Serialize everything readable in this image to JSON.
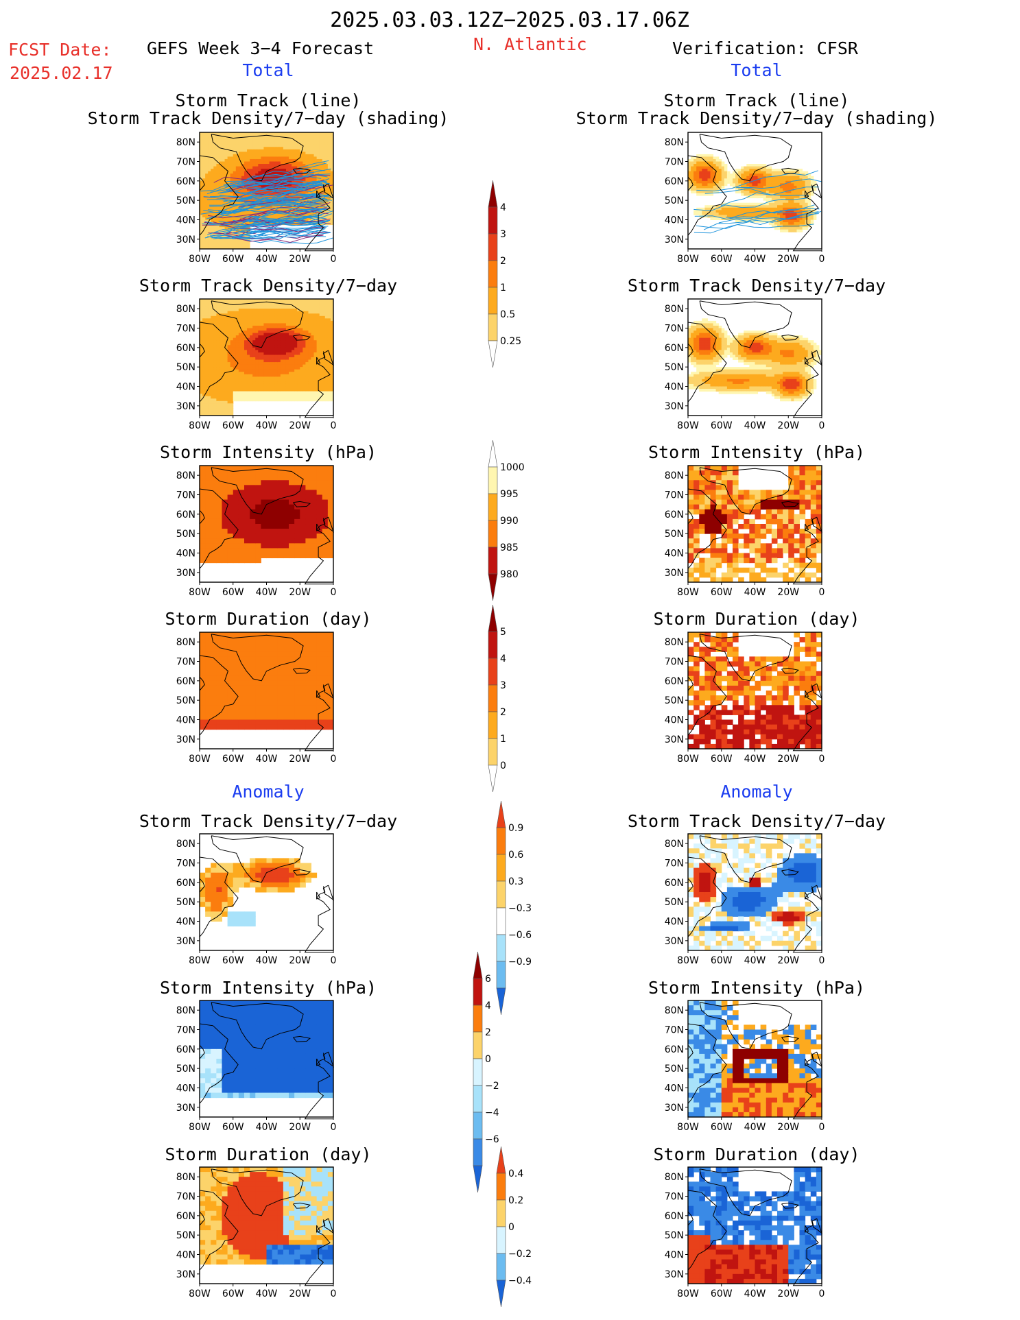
{
  "header": {
    "period": "2025.03.03.12Z−2025.03.17.06Z",
    "fcst_label": "FCST Date:",
    "fcst_date": "2025.02.17",
    "left_title": "GEFS Week 3−4 Forecast",
    "region": "N. Atlantic",
    "right_title": "Verification: CFSR",
    "total_left": "Total",
    "total_right": "Total",
    "anomaly_left": "Anomaly",
    "anomaly_right": "Anomaly"
  },
  "panel_titles": {
    "track_line": "Storm Track (line)",
    "track_shading": "Storm Track Density/7−day (shading)",
    "density": "Storm Track Density/7−day",
    "intensity": "Storm Intensity (hPa)",
    "duration": "Storm Duration (day)"
  },
  "axis": {
    "lat_ticks": [
      "80N",
      "70N",
      "60N",
      "50N",
      "40N",
      "30N"
    ],
    "lon_ticks": [
      "80W",
      "60W",
      "40W",
      "20W",
      "0"
    ]
  },
  "colorbars": {
    "density": [
      "4",
      "3",
      "2",
      "1",
      "0.5",
      "0.25"
    ],
    "intensity": [
      "1000",
      "995",
      "990",
      "985",
      "980"
    ],
    "duration": [
      "5",
      "4",
      "3",
      "2",
      "1",
      "0"
    ],
    "density_anom": [
      "0.9",
      "0.6",
      "0.3",
      "−0.3",
      "−0.6",
      "−0.9"
    ],
    "intensity_anom": [
      "6",
      "4",
      "2",
      "0",
      "−2",
      "−4",
      "−6"
    ],
    "duration_anom": [
      "0.4",
      "0.2",
      "0",
      "−0.2",
      "−0.4"
    ]
  },
  "colors": {
    "warm": [
      "#fff6b0",
      "#fcd36a",
      "#fdaa1e",
      "#fb7d0e",
      "#e8411a",
      "#c01410",
      "#8e0000"
    ],
    "cold": [
      "#d8f4ff",
      "#a8e2fa",
      "#6cbcf0",
      "#3a8ae6",
      "#1a64d6"
    ],
    "track_line": "#1c93dc",
    "track_line_dark": "#8a2a7a",
    "coast": "#000000"
  },
  "chart_data": [
    {
      "type": "heatmap",
      "panel": "GEFS total: Storm Track (line) / Storm Track Density/7-day (shading)",
      "title": "Storm Track (line) / Storm Track Density/7−day (shading)",
      "xlim": [
        -80,
        0
      ],
      "ylim": [
        25,
        85
      ],
      "color_levels": [
        0.25,
        0.5,
        1,
        2,
        3,
        4
      ],
      "core_max": 4,
      "region": "core near 55-65N, 40-20W"
    },
    {
      "type": "heatmap",
      "panel": "GEFS total: Storm Track Density/7-day",
      "title": "Storm Track Density/7−day",
      "xlim": [
        -80,
        0
      ],
      "ylim": [
        25,
        85
      ],
      "color_levels": [
        0.25,
        0.5,
        1,
        2,
        3,
        4
      ]
    },
    {
      "type": "heatmap",
      "panel": "GEFS total: Storm Intensity (hPa)",
      "title": "Storm Intensity (hPa)",
      "xlim": [
        -80,
        0
      ],
      "ylim": [
        25,
        85
      ],
      "color_levels": [
        1000,
        995,
        990,
        985,
        980
      ]
    },
    {
      "type": "heatmap",
      "panel": "GEFS total: Storm Duration (day)",
      "title": "Storm Duration (day)",
      "xlim": [
        -80,
        0
      ],
      "ylim": [
        25,
        85
      ],
      "color_levels": [
        0,
        1,
        2,
        3,
        4,
        5
      ]
    },
    {
      "type": "heatmap",
      "panel": "CFSR total: Storm Track (line) / Storm Track Density/7-day (shading)",
      "title": "Storm Track (line) / Storm Track Density/7−day (shading)",
      "xlim": [
        -80,
        0
      ],
      "ylim": [
        25,
        85
      ],
      "color_levels": [
        0.25,
        0.5,
        1,
        2,
        3,
        4
      ]
    },
    {
      "type": "heatmap",
      "panel": "CFSR total: Storm Track Density/7-day",
      "title": "Storm Track Density/7−day",
      "xlim": [
        -80,
        0
      ],
      "ylim": [
        25,
        85
      ],
      "color_levels": [
        0.25,
        0.5,
        1,
        2,
        3,
        4
      ]
    },
    {
      "type": "heatmap",
      "panel": "CFSR total: Storm Intensity (hPa)",
      "title": "Storm Intensity (hPa)",
      "xlim": [
        -80,
        0
      ],
      "ylim": [
        25,
        85
      ],
      "color_levels": [
        1000,
        995,
        990,
        985,
        980
      ]
    },
    {
      "type": "heatmap",
      "panel": "CFSR total: Storm Duration (day)",
      "title": "Storm Duration (day)",
      "xlim": [
        -80,
        0
      ],
      "ylim": [
        25,
        85
      ],
      "color_levels": [
        0,
        1,
        2,
        3,
        4,
        5
      ]
    },
    {
      "type": "heatmap",
      "panel": "GEFS anomaly: Storm Track Density/7-day",
      "title": "Storm Track Density/7−day",
      "xlim": [
        -80,
        0
      ],
      "ylim": [
        25,
        85
      ],
      "color_levels": [
        -0.9,
        -0.6,
        -0.3,
        0.3,
        0.6,
        0.9
      ]
    },
    {
      "type": "heatmap",
      "panel": "GEFS anomaly: Storm Intensity (hPa)",
      "title": "Storm Intensity (hPa)",
      "xlim": [
        -80,
        0
      ],
      "ylim": [
        25,
        85
      ],
      "color_levels": [
        -6,
        -4,
        -2,
        0,
        2,
        4,
        6
      ]
    },
    {
      "type": "heatmap",
      "panel": "GEFS anomaly: Storm Duration (day)",
      "title": "Storm Duration (day)",
      "xlim": [
        -80,
        0
      ],
      "ylim": [
        25,
        85
      ],
      "color_levels": [
        -0.4,
        -0.2,
        0,
        0.2,
        0.4
      ]
    },
    {
      "type": "heatmap",
      "panel": "CFSR anomaly: Storm Track Density/7-day",
      "title": "Storm Track Density/7−day",
      "xlim": [
        -80,
        0
      ],
      "ylim": [
        25,
        85
      ],
      "color_levels": [
        -0.9,
        -0.6,
        -0.3,
        0.3,
        0.6,
        0.9
      ]
    },
    {
      "type": "heatmap",
      "panel": "CFSR anomaly: Storm Intensity (hPa)",
      "title": "Storm Intensity (hPa)",
      "xlim": [
        -80,
        0
      ],
      "ylim": [
        25,
        85
      ],
      "color_levels": [
        -6,
        -4,
        -2,
        0,
        2,
        4,
        6
      ]
    },
    {
      "type": "heatmap",
      "panel": "CFSR anomaly: Storm Duration (day)",
      "title": "Storm Duration (day)",
      "xlim": [
        -80,
        0
      ],
      "ylim": [
        25,
        85
      ],
      "color_levels": [
        -0.4,
        -0.2,
        0,
        0.2,
        0.4
      ]
    }
  ]
}
